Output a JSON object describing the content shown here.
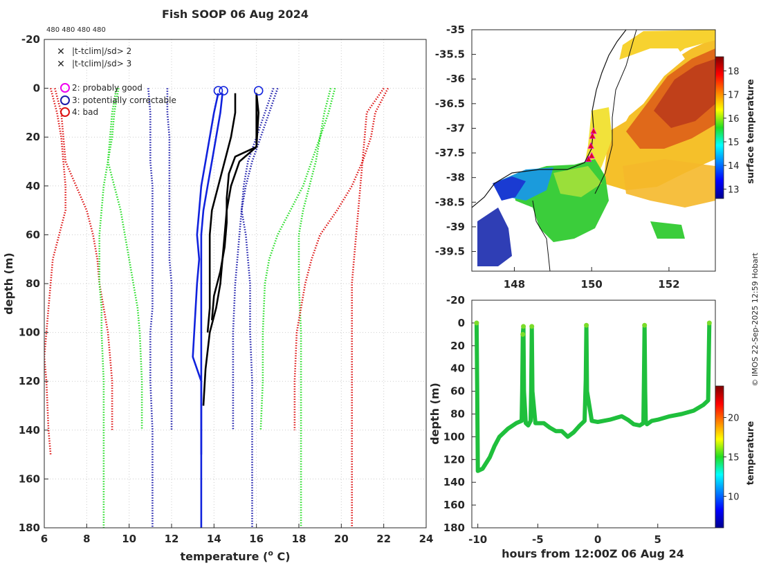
{
  "title": "Fish SOOP 06 Aug 2024",
  "counts_label": "480 480 480 480",
  "credit": "© IMOS 22-Sep-2025 12:59 Hobart",
  "legend": {
    "green_x": "|t-tclim|/sd> 2",
    "red_x": "|t-tclim|/sd> 3",
    "flag2": "2: probably good",
    "flag3": "3: potentially correctable",
    "flag4": "4: bad"
  },
  "colors": {
    "green": "#22dd22",
    "red": "#dd1111",
    "blue_dot": "#1a1aaa",
    "blue_profile": "#1022dd",
    "black": "#000000",
    "magenta": "#ee00ee",
    "grid": "#cccccc"
  },
  "chart_data": [
    {
      "id": "profile",
      "type": "line",
      "title": "Fish SOOP 06 Aug 2024",
      "xlabel": "temperature (",
      "xlabel_sup": "o",
      "xlabel_end": " C)",
      "ylabel": "depth (m)",
      "xlim": [
        6,
        24
      ],
      "ylim": [
        -20,
        180
      ],
      "xticks": [
        6,
        8,
        10,
        12,
        14,
        16,
        18,
        20,
        22,
        24
      ],
      "yticks": [
        -20,
        0,
        20,
        40,
        60,
        80,
        100,
        120,
        140,
        160,
        180
      ],
      "climatology": [
        {
          "name": "clim-red-left",
          "color": "red",
          "x": [
            6.5,
            6.8,
            6.9,
            7.0,
            7.5,
            8.0,
            8.3,
            8.5,
            8.6,
            8.8,
            9.0,
            9.1,
            9.2,
            9.2
          ],
          "y": [
            0,
            10,
            20,
            30,
            40,
            50,
            60,
            70,
            80,
            90,
            100,
            110,
            120,
            140
          ]
        },
        {
          "name": "clim-red-left2",
          "color": "red",
          "x": [
            6.3,
            6.6,
            6.8,
            6.9,
            7.0,
            7.0,
            6.7,
            6.4,
            6.3,
            6.2,
            6.1,
            6.0,
            6.1,
            6.2,
            6.3
          ],
          "y": [
            0,
            10,
            20,
            30,
            40,
            50,
            60,
            70,
            80,
            90,
            100,
            110,
            120,
            140,
            150
          ]
        },
        {
          "name": "clim-green-left",
          "color": "green",
          "x": [
            9.5,
            9.3,
            9.2,
            9.0,
            8.8,
            8.7,
            8.6,
            8.6,
            8.6,
            8.7,
            8.7,
            8.8,
            8.8,
            8.8
          ],
          "y": [
            0,
            10,
            20,
            30,
            40,
            50,
            60,
            70,
            80,
            90,
            100,
            120,
            140,
            180
          ]
        },
        {
          "name": "clim-green-left2",
          "color": "green",
          "x": [
            9.4,
            9.2,
            9.1,
            9.0,
            9.3,
            9.6,
            9.8,
            10.0,
            10.2,
            10.4,
            10.5,
            10.6,
            10.6
          ],
          "y": [
            0,
            10,
            20,
            30,
            40,
            50,
            60,
            70,
            80,
            90,
            100,
            120,
            140
          ]
        },
        {
          "name": "clim-blue-left",
          "color": "blue",
          "x": [
            10.9,
            11.0,
            11.0,
            11.0,
            11.1,
            11.1,
            11.1,
            11.1,
            11.1,
            11.1,
            11.0,
            11.0,
            11.1,
            11.1
          ],
          "y": [
            0,
            10,
            20,
            30,
            40,
            50,
            60,
            70,
            80,
            90,
            100,
            120,
            140,
            180
          ]
        },
        {
          "name": "clim-blue-left2",
          "color": "blue",
          "x": [
            11.8,
            11.8,
            11.9,
            11.9,
            11.9,
            11.9,
            11.9,
            12.0,
            12.0,
            12.0,
            12.0,
            12.0
          ],
          "y": [
            0,
            10,
            20,
            30,
            40,
            60,
            70,
            80,
            90,
            100,
            120,
            140
          ]
        },
        {
          "name": "clim-blue-right",
          "color": "blue",
          "x": [
            17.0,
            16.6,
            16.2,
            15.8,
            15.5,
            15.3,
            15.2,
            15.1,
            15.0,
            14.9,
            14.9,
            14.9
          ],
          "y": [
            0,
            10,
            20,
            30,
            40,
            50,
            60,
            70,
            80,
            100,
            120,
            140
          ]
        },
        {
          "name": "clim-blue-right2",
          "color": "blue",
          "x": [
            16.8,
            16.4,
            16.0,
            15.6,
            15.4,
            15.3,
            15.5,
            15.6,
            15.7,
            15.7,
            15.8,
            15.8
          ],
          "y": [
            0,
            10,
            20,
            30,
            40,
            50,
            60,
            70,
            80,
            100,
            120,
            180
          ]
        },
        {
          "name": "clim-green-right",
          "color": "green",
          "x": [
            19.7,
            19.4,
            19.0,
            18.6,
            18.2,
            17.6,
            17.0,
            16.6,
            16.4,
            16.3,
            16.3,
            16.2
          ],
          "y": [
            0,
            10,
            20,
            30,
            40,
            50,
            60,
            70,
            80,
            100,
            120,
            140
          ]
        },
        {
          "name": "clim-green-right2",
          "color": "green",
          "x": [
            19.5,
            19.2,
            19.0,
            18.8,
            18.5,
            18.2,
            18.0,
            18.0,
            18.0,
            18.1,
            18.1,
            18.1
          ],
          "y": [
            0,
            10,
            20,
            30,
            40,
            50,
            60,
            70,
            80,
            100,
            120,
            180
          ]
        },
        {
          "name": "clim-red-right",
          "color": "red",
          "x": [
            22.2,
            21.6,
            21.4,
            21.0,
            20.5,
            19.8,
            19.0,
            18.6,
            18.3,
            18.1,
            17.9,
            17.8,
            17.8
          ],
          "y": [
            0,
            10,
            20,
            30,
            40,
            50,
            60,
            70,
            80,
            90,
            100,
            120,
            140
          ]
        },
        {
          "name": "clim-red-right2",
          "color": "red",
          "x": [
            22.0,
            21.2,
            21.1,
            21.0,
            20.9,
            20.8,
            20.7,
            20.6,
            20.5,
            20.5,
            20.5,
            20.5,
            20.5
          ],
          "y": [
            0,
            10,
            20,
            30,
            40,
            50,
            60,
            70,
            80,
            90,
            100,
            120,
            180
          ]
        }
      ],
      "profiles": [
        {
          "name": "profile-black-1",
          "color": "black",
          "x": [
            15.0,
            15.0,
            14.8,
            14.5,
            14.2,
            13.9,
            13.8,
            13.8,
            13.8,
            13.8,
            13.7
          ],
          "y": [
            2,
            10,
            20,
            30,
            40,
            50,
            60,
            70,
            80,
            90,
            100
          ]
        },
        {
          "name": "profile-black-2",
          "color": "black",
          "x": [
            16.0,
            16.1,
            16.0,
            15.0,
            14.7,
            14.6,
            14.6,
            14.5,
            14.3,
            14.0,
            13.9
          ],
          "y": [
            2,
            10,
            24,
            28,
            35,
            45,
            55,
            65,
            75,
            85,
            95
          ]
        },
        {
          "name": "profile-black-3",
          "color": "black",
          "x": [
            16.0,
            16.0,
            16.0,
            15.2,
            14.8,
            14.6,
            14.5,
            14.4,
            14.3,
            14.1,
            13.8,
            13.6,
            13.5
          ],
          "y": [
            2,
            10,
            24,
            30,
            40,
            50,
            60,
            70,
            80,
            90,
            100,
            115,
            130
          ]
        },
        {
          "name": "profile-blue-1",
          "color": "blue",
          "x": [
            14.4,
            14.3,
            14.1,
            13.9,
            13.7,
            13.5,
            13.4,
            13.4,
            13.4,
            13.4,
            13.4,
            13.4
          ],
          "y": [
            2,
            10,
            20,
            30,
            40,
            50,
            60,
            70,
            80,
            100,
            120,
            180
          ]
        },
        {
          "name": "profile-blue-2",
          "color": "blue",
          "x": [
            14.2,
            14.0,
            13.8,
            13.6,
            13.4,
            13.3,
            13.2,
            13.3,
            13.2,
            13.0,
            13.4,
            13.4
          ],
          "y": [
            2,
            10,
            20,
            30,
            40,
            50,
            60,
            70,
            80,
            110,
            120,
            150
          ]
        }
      ],
      "surface_flags": [
        {
          "name": "flag-circle-1",
          "x": 14.2,
          "y": 1
        },
        {
          "name": "flag-circle-2",
          "x": 14.45,
          "y": 1
        },
        {
          "name": "flag-circle-3",
          "x": 16.1,
          "y": 1
        }
      ]
    },
    {
      "id": "map",
      "type": "heatmap",
      "xlim": [
        146.9,
        153.2
      ],
      "ylim": [
        -39.9,
        -35.0
      ],
      "xticks": [
        148,
        150,
        152
      ],
      "yticks": [
        -35,
        -35.5,
        -36,
        -36.5,
        -37,
        -37.5,
        -38,
        -38.5,
        -39,
        -39.5
      ],
      "colorbar_label": "surface temperature",
      "colorbar_ticks": [
        13,
        14,
        15,
        16,
        17,
        18
      ],
      "colorbar_range": [
        12.6,
        18.6
      ],
      "track_points": [
        {
          "lon": 150.05,
          "lat": -37.05
        },
        {
          "lon": 150.02,
          "lat": -37.15
        },
        {
          "lon": 149.98,
          "lat": -37.35
        },
        {
          "lon": 150.0,
          "lat": -37.55
        },
        {
          "lon": 149.92,
          "lat": -37.62
        }
      ]
    },
    {
      "id": "timeseries",
      "type": "scatter",
      "xlabel": "hours from 12:00Z 06 Aug 24",
      "ylabel": "depth (m)",
      "xlim": [
        -10.5,
        9.8
      ],
      "ylim": [
        -20,
        180
      ],
      "xticks": [
        -10,
        -5,
        0,
        5
      ],
      "yticks": [
        -20,
        0,
        20,
        40,
        60,
        80,
        100,
        120,
        140,
        160,
        180
      ],
      "colorbar_label": "temperature",
      "colorbar_ticks": [
        10,
        15,
        20
      ],
      "colorbar_range": [
        6,
        24
      ],
      "track": {
        "t": [
          -10.1,
          -10.05,
          -10.0,
          -9.6,
          -9.0,
          -8.6,
          -8.2,
          -7.5,
          -6.8,
          -6.35,
          -6.3,
          -6.25,
          -6.2,
          -6.15,
          -6.0,
          -5.8,
          -5.6,
          -5.55,
          -5.5,
          -5.45,
          -5.2,
          -4.5,
          -4.0,
          -3.5,
          -3.0,
          -2.5,
          -2.0,
          -1.5,
          -1.1,
          -1.0,
          -0.95,
          -0.9,
          -0.5,
          0.0,
          1.0,
          2.0,
          2.5,
          3.0,
          3.5,
          3.8,
          3.85,
          3.9,
          3.95,
          4.0,
          4.1,
          4.5,
          5.0,
          6.0,
          7.0,
          8.0,
          8.8,
          9.2,
          9.25,
          9.3
        ],
        "depth": [
          0,
          60,
          130,
          128,
          118,
          108,
          100,
          93,
          88,
          86,
          60,
          10,
          3,
          60,
          88,
          90,
          86,
          60,
          3,
          60,
          88,
          88,
          92,
          95,
          95,
          100,
          96,
          90,
          86,
          50,
          2,
          60,
          86,
          87,
          85,
          82,
          85,
          89,
          90,
          88,
          50,
          2,
          60,
          86,
          89,
          86,
          85,
          82,
          80,
          77,
          72,
          68,
          30,
          0
        ]
      }
    }
  ]
}
